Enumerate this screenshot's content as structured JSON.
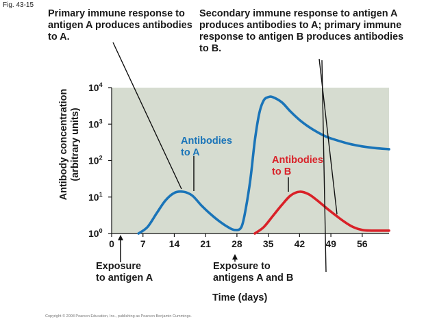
{
  "figure_label": "Fig. 43-15",
  "annotations": {
    "primary_a": "Primary immune response to antigen A produces antibodies to A.",
    "secondary_a": "Secondary immune response to antigen A produces antibodies to A; primary immune response to antigen B produces antibodies to B."
  },
  "exposures": {
    "first_line1": "Exposure",
    "first_line2": "to antigen A",
    "second_line1": "Exposure to",
    "second_line2": "antigens A and B"
  },
  "copyright": "Copyright © 2008 Pearson Education, Inc., publishing as Pearson Benjamin Cummings.",
  "chart_data": {
    "type": "line",
    "title": "",
    "xlabel": "Time (days)",
    "ylabel_line1": "Antibody concentration",
    "ylabel_line2": "(arbitrary units)",
    "yscale": "log",
    "xlim": [
      0,
      62
    ],
    "ylim": [
      1,
      10000
    ],
    "grid": false,
    "x_ticks": [
      0,
      7,
      14,
      21,
      28,
      35,
      42,
      49,
      56
    ],
    "y_ticks": [
      {
        "value": 1,
        "base": "10",
        "exp": "0"
      },
      {
        "value": 10,
        "base": "10",
        "exp": "1"
      },
      {
        "value": 100,
        "base": "10",
        "exp": "2"
      },
      {
        "value": 1000,
        "base": "10",
        "exp": "3"
      },
      {
        "value": 10000,
        "base": "10",
        "exp": "4"
      }
    ],
    "exposure_days": [
      2,
      28
    ],
    "series": [
      {
        "name_line1": "Antibodies",
        "name_line2": "to A",
        "color": "#1a74b8",
        "points": [
          [
            6,
            1.0
          ],
          [
            8,
            1.5
          ],
          [
            10,
            3.5
          ],
          [
            12,
            8
          ],
          [
            14,
            13
          ],
          [
            16,
            14
          ],
          [
            18,
            11
          ],
          [
            20,
            6
          ],
          [
            22,
            3.5
          ],
          [
            24,
            2.2
          ],
          [
            26,
            1.5
          ],
          [
            27.5,
            1.25
          ],
          [
            29,
            1.5
          ],
          [
            30,
            5
          ],
          [
            31,
            30
          ],
          [
            32,
            350
          ],
          [
            33,
            2000
          ],
          [
            34,
            4500
          ],
          [
            35,
            5500
          ],
          [
            36,
            5500
          ],
          [
            38,
            4000
          ],
          [
            40,
            2200
          ],
          [
            42,
            1300
          ],
          [
            44,
            850
          ],
          [
            46,
            600
          ],
          [
            48,
            450
          ],
          [
            50,
            370
          ],
          [
            53,
            290
          ],
          [
            56,
            245
          ],
          [
            59,
            220
          ],
          [
            62,
            205
          ]
        ]
      },
      {
        "name_line1": "Antibodies",
        "name_line2": "to B",
        "color": "#d92128",
        "points": [
          [
            32,
            1.0
          ],
          [
            34,
            1.5
          ],
          [
            36,
            3
          ],
          [
            38,
            6
          ],
          [
            40,
            11
          ],
          [
            42,
            14
          ],
          [
            44,
            12
          ],
          [
            46,
            8
          ],
          [
            48,
            5
          ],
          [
            50,
            3.2
          ],
          [
            52,
            2.1
          ],
          [
            54,
            1.5
          ],
          [
            56,
            1.25
          ],
          [
            58,
            1.2
          ],
          [
            62,
            1.2
          ]
        ]
      }
    ]
  }
}
